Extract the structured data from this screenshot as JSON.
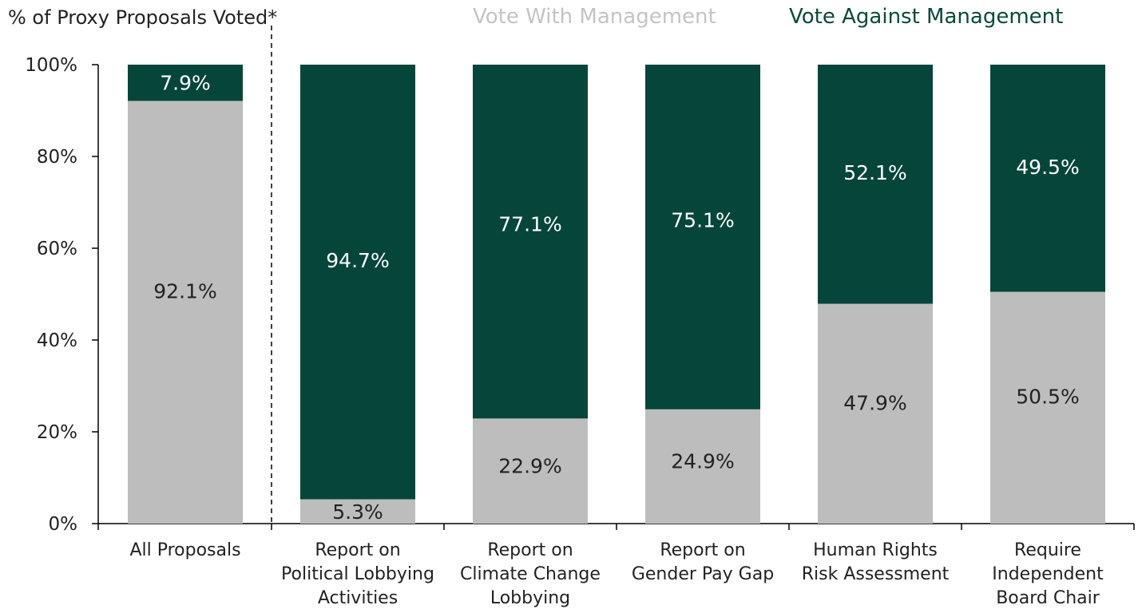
{
  "chart_data": {
    "type": "bar",
    "stacked": true,
    "ylabel": "% of Proxy Proposals Voted*",
    "ylim": [
      0,
      100
    ],
    "yticks": [
      "0%",
      "20%",
      "40%",
      "60%",
      "80%",
      "100%"
    ],
    "categories": [
      [
        "All Proposals"
      ],
      [
        "Report on",
        "Political Lobbying",
        "Activities"
      ],
      [
        "Report on",
        "Climate Change",
        "Lobbying"
      ],
      [
        "Report on",
        "Gender Pay Gap"
      ],
      [
        "Human Rights",
        "Risk Assessment"
      ],
      [
        "Require",
        "Independent",
        "Board Chair"
      ]
    ],
    "series": [
      {
        "name": "Vote With Management",
        "color": "#bcbdbc",
        "values": [
          92.1,
          5.3,
          22.9,
          24.9,
          47.9,
          50.5
        ],
        "labels": [
          "92.1%",
          "5.3%",
          "22.9%",
          "24.9%",
          "47.9%",
          "50.5%"
        ]
      },
      {
        "name": "Vote Against Management",
        "color": "#06463a",
        "values": [
          7.9,
          94.7,
          77.1,
          75.1,
          52.1,
          49.5
        ],
        "labels": [
          "7.9%",
          "94.7%",
          "77.1%",
          "75.1%",
          "52.1%",
          "49.5%"
        ]
      }
    ],
    "grid": false,
    "legend": "top"
  }
}
